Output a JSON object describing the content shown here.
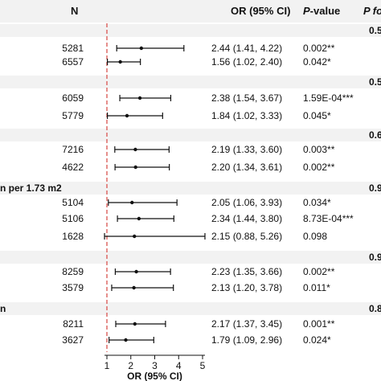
{
  "header": {
    "n_label": "N",
    "or_label": "OR (95% CI)",
    "p_label_italic": "P",
    "p_label_rest": "-value",
    "pfor_label": "P fo"
  },
  "groups": [
    {
      "label": "",
      "p_interaction": "0.5"
    },
    {
      "label": "",
      "p_interaction": "0.5"
    },
    {
      "label": "",
      "p_interaction": "0.6"
    },
    {
      "label": "n per 1.73 m2",
      "p_interaction": "0.9"
    },
    {
      "label": "",
      "p_interaction": "0.9"
    },
    {
      "label": "n",
      "p_interaction": "0.8"
    }
  ],
  "chart_data": {
    "type": "forest",
    "xlabel": "OR (95% CI)",
    "xlim": [
      0.9,
      5.1
    ],
    "xticks": [
      1,
      2,
      3,
      4,
      5
    ],
    "reference_line": 1,
    "rows": [
      {
        "n": "5281",
        "or": 2.44,
        "lo": 1.41,
        "hi": 4.22,
        "or_text": "2.44 (1.41, 4.22)",
        "p": "0.002**",
        "group": 0
      },
      {
        "n": "6557",
        "or": 1.56,
        "lo": 1.02,
        "hi": 2.4,
        "or_text": "1.56 (1.02, 2.40)",
        "p": "0.042*",
        "group": 0
      },
      {
        "n": "6059",
        "or": 2.38,
        "lo": 1.54,
        "hi": 3.67,
        "or_text": "2.38 (1.54, 3.67)",
        "p": "1.59E-04***",
        "group": 1
      },
      {
        "n": "5779",
        "or": 1.84,
        "lo": 1.02,
        "hi": 3.33,
        "or_text": "1.84 (1.02, 3.33)",
        "p": "0.045*",
        "group": 1
      },
      {
        "n": "7216",
        "or": 2.19,
        "lo": 1.33,
        "hi": 3.6,
        "or_text": "2.19 (1.33, 3.60)",
        "p": "0.003**",
        "group": 2
      },
      {
        "n": "4622",
        "or": 2.2,
        "lo": 1.34,
        "hi": 3.61,
        "or_text": "2.20 (1.34, 3.61)",
        "p": "0.002**",
        "group": 2
      },
      {
        "n": "5104",
        "or": 2.05,
        "lo": 1.06,
        "hi": 3.93,
        "or_text": "2.05 (1.06, 3.93)",
        "p": "0.034*",
        "group": 3
      },
      {
        "n": "5106",
        "or": 2.34,
        "lo": 1.44,
        "hi": 3.8,
        "or_text": "2.34 (1.44, 3.80)",
        "p": "8.73E-04***",
        "group": 3
      },
      {
        "n": "1628",
        "or": 2.15,
        "lo": 0.88,
        "hi": 5.26,
        "or_text": "2.15 (0.88, 5.26)",
        "p": "0.098",
        "group": 3
      },
      {
        "n": "8259",
        "or": 2.23,
        "lo": 1.35,
        "hi": 3.66,
        "or_text": "2.23 (1.35, 3.66)",
        "p": "0.002**",
        "group": 4
      },
      {
        "n": "3579",
        "or": 2.13,
        "lo": 1.2,
        "hi": 3.78,
        "or_text": "2.13 (1.20, 3.78)",
        "p": "0.011*",
        "group": 4
      },
      {
        "n": "8211",
        "or": 2.17,
        "lo": 1.37,
        "hi": 3.45,
        "or_text": "2.17 (1.37, 3.45)",
        "p": "0.001**",
        "group": 5
      },
      {
        "n": "3627",
        "or": 1.79,
        "lo": 1.09,
        "hi": 2.96,
        "or_text": "1.79 (1.09, 2.96)",
        "p": "0.024*",
        "group": 5
      }
    ]
  },
  "colors": {
    "reference_line": "#d9534f",
    "band": "#f2f2f2",
    "ink": "#111111"
  }
}
